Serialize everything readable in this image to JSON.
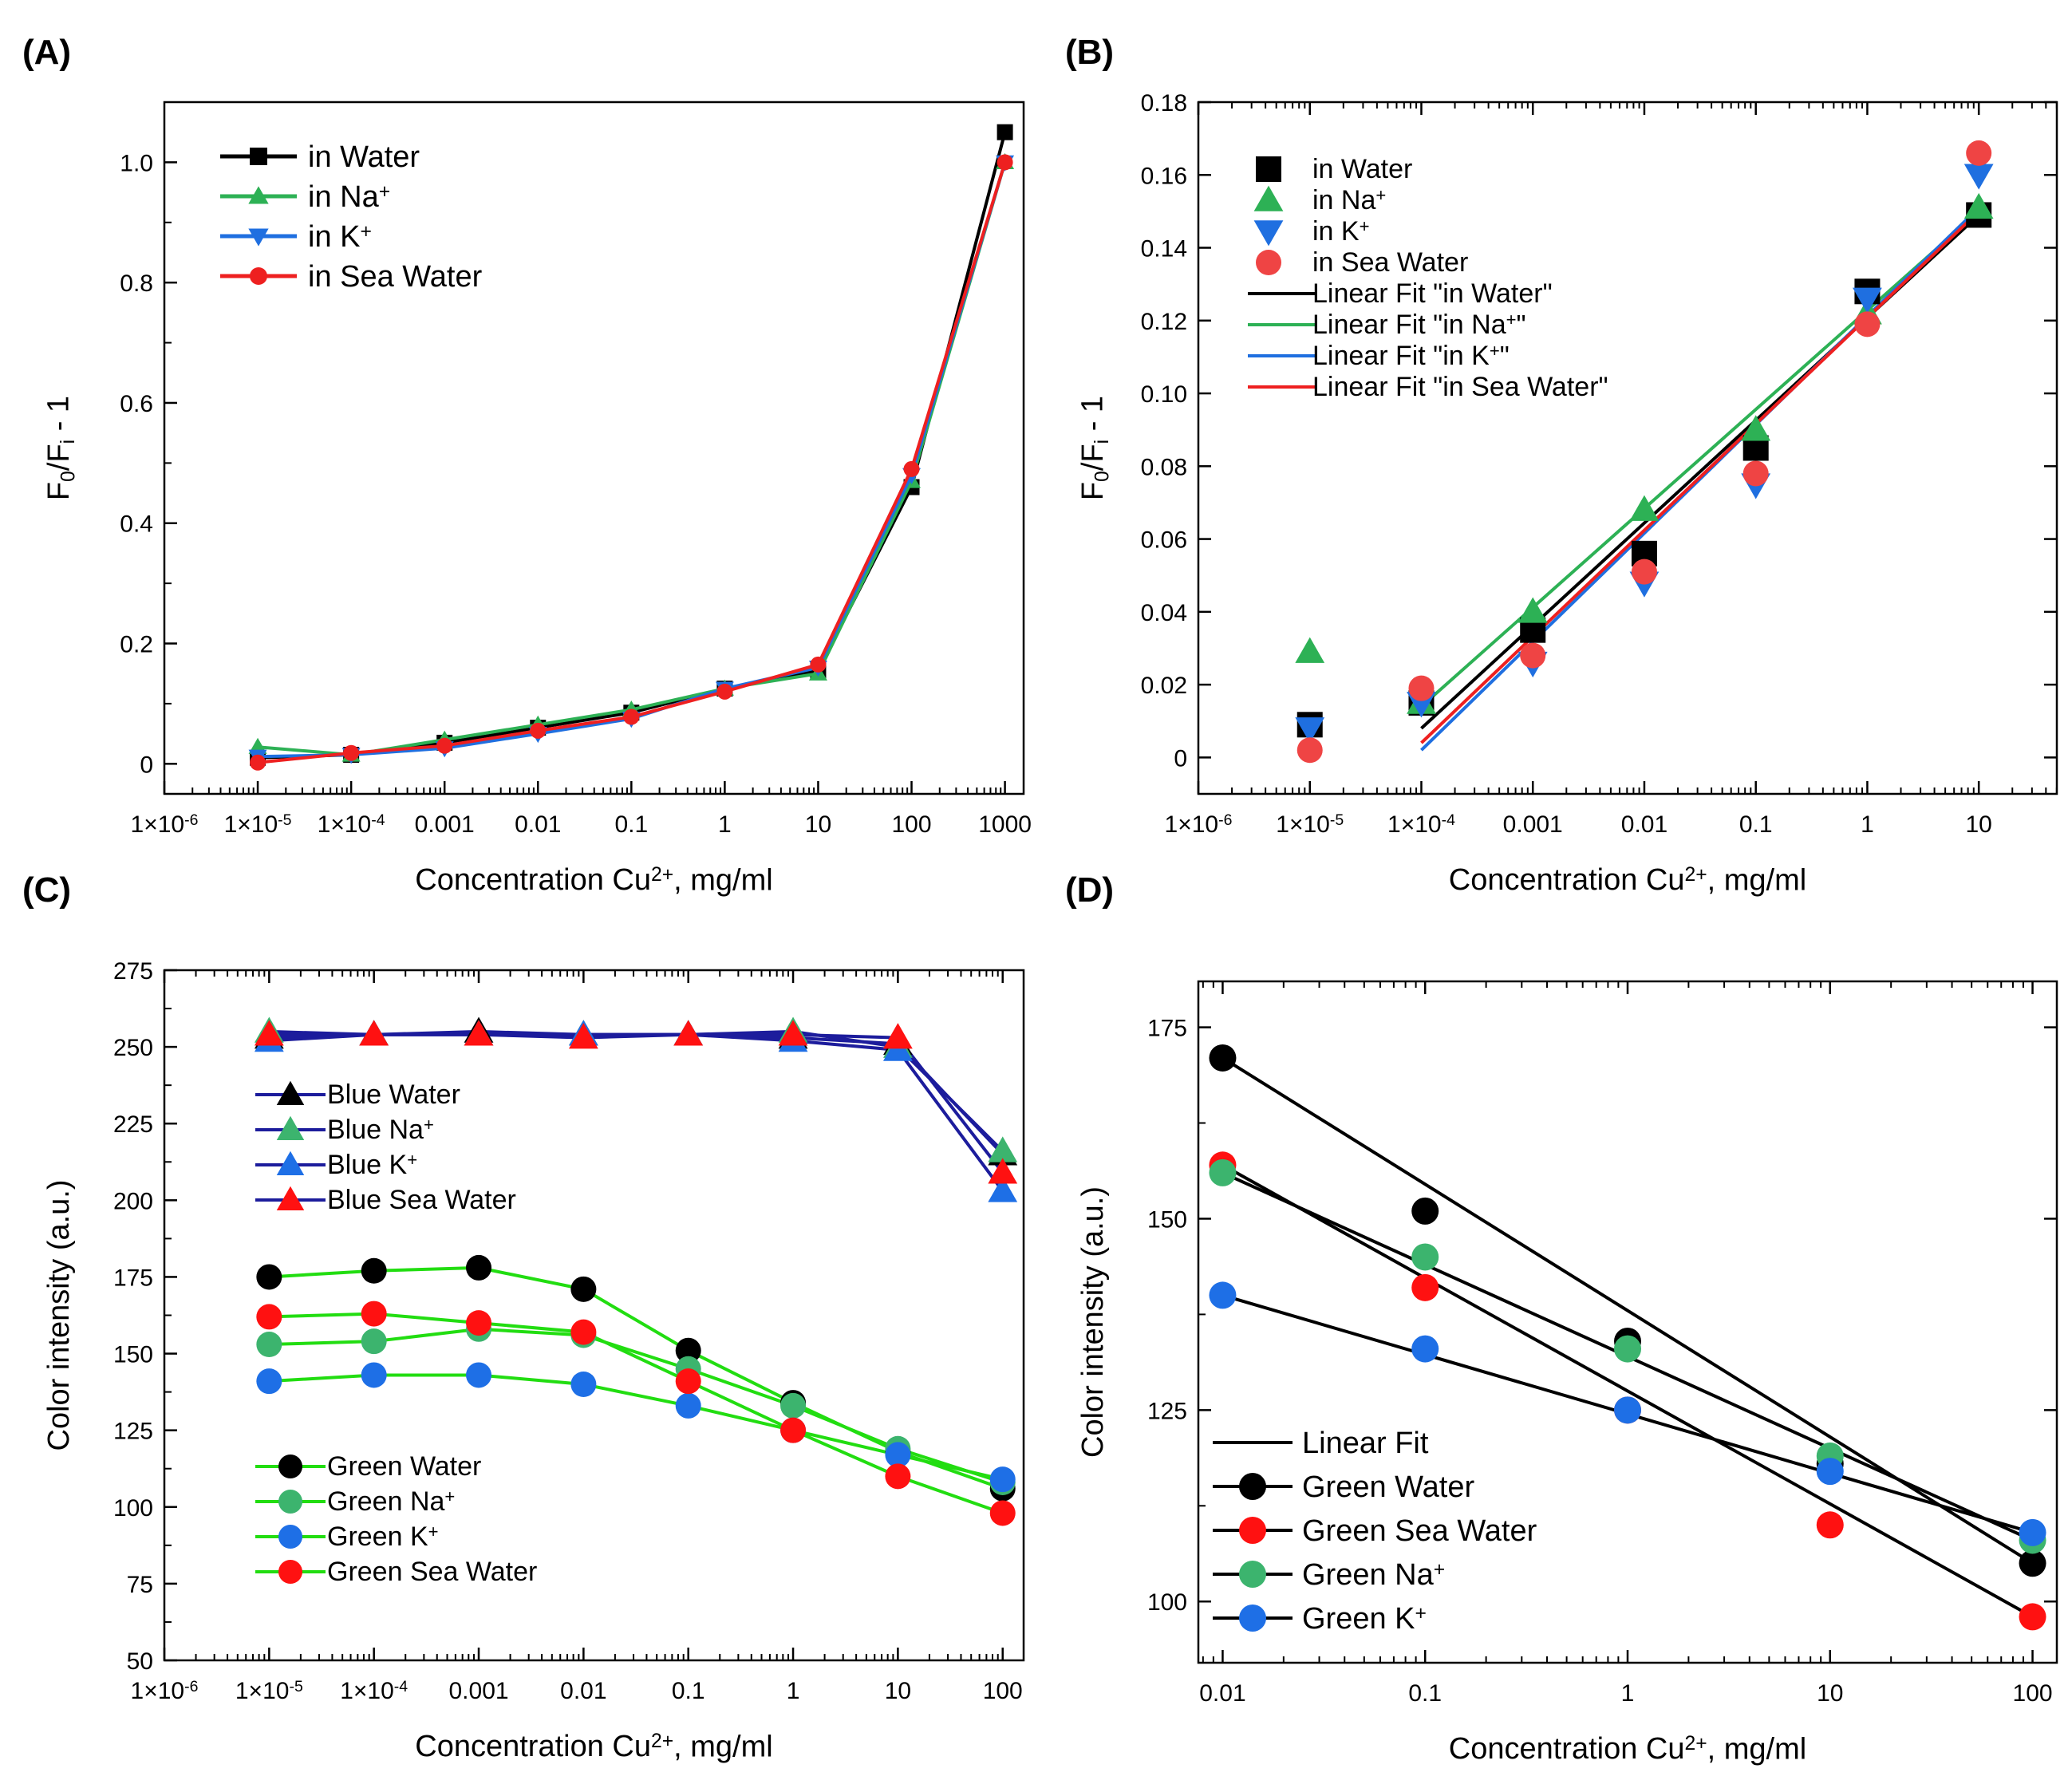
{
  "panels": {
    "A": {
      "label": "(A)"
    },
    "B": {
      "label": "(B)"
    },
    "C": {
      "label": "(C)"
    },
    "D": {
      "label": "(D)"
    }
  },
  "tick_text": {
    "m6": "1×10",
    "m6e": "-6",
    "m5": "1×10",
    "m5e": "-5",
    "m4": "1×10",
    "m4e": "-4"
  },
  "colors": {
    "black": "#000000",
    "green": "#2db155",
    "blue": "#1f6fe0",
    "red": "#ee2020",
    "navy": "#1c1c9c",
    "lime": "#22dd11",
    "ltred": "#ef4444",
    "blue_pt": "#1e6fe6",
    "green_pt": "#3cb46e",
    "red_pt": "#ff1111"
  },
  "chart_data": [
    {
      "id": "A",
      "type": "line",
      "title": "",
      "xlabel": "Concentration Cu",
      "xlabel_sup": "2+",
      "xlabel_tail": ", mg/ml",
      "ylabel": "F",
      "ylabel_sub0": "0",
      "ylabel_mid": "/F",
      "ylabel_sub1": "i",
      "ylabel_tail": " - 1",
      "xscale": "log",
      "xlim_exp": [
        -6,
        3.2
      ],
      "ylim": [
        -0.05,
        1.1
      ],
      "x_ticks": [
        "1×10-6",
        "1×10-5",
        "1×10-4",
        "0.001",
        "0.01",
        "0.1",
        "1",
        "10",
        "100",
        "1000"
      ],
      "y_ticks": [
        "0",
        "0.2",
        "0.4",
        "0.6",
        "0.8",
        "1.0"
      ],
      "x_exp": [
        -5,
        -4,
        -3,
        -2,
        -1,
        0,
        1,
        2,
        3
      ],
      "legend": {
        "placement": "top-left",
        "entries": [
          {
            "text": "in Water"
          },
          {
            "text": "in Na",
            "sup": "+"
          },
          {
            "text": "in K",
            "sup": "+"
          },
          {
            "text": "in Sea Water"
          }
        ]
      },
      "series": [
        {
          "name": "in Water",
          "marker": "square",
          "color": "#000000",
          "values": [
            0.01,
            0.015,
            0.035,
            0.06,
            0.085,
            0.125,
            0.155,
            0.46,
            1.05
          ]
        },
        {
          "name": "in Na+",
          "marker": "triangle-up",
          "color": "#2db155",
          "values": [
            0.028,
            0.015,
            0.04,
            0.065,
            0.09,
            0.125,
            0.15,
            0.47,
            1.0
          ]
        },
        {
          "name": "in K+",
          "marker": "triangle-down",
          "color": "#1f6fe0",
          "values": [
            0.012,
            0.015,
            0.026,
            0.05,
            0.075,
            0.125,
            0.16,
            0.48,
            1.0
          ]
        },
        {
          "name": "in Sea Water",
          "marker": "circle",
          "color": "#ee2020",
          "values": [
            0.002,
            0.018,
            0.03,
            0.055,
            0.078,
            0.12,
            0.165,
            0.49,
            1.0
          ]
        }
      ]
    },
    {
      "id": "B",
      "type": "scatter",
      "xlabel": "Concentration Cu",
      "xlabel_sup": "2+",
      "xlabel_tail": ", mg/ml",
      "ylabel": "F",
      "ylabel_sub0": "0",
      "ylabel_mid": "/F",
      "ylabel_sub1": "i",
      "ylabel_tail": " - 1",
      "xscale": "log",
      "xlim_exp": [
        -6,
        1.7
      ],
      "ylim": [
        -0.01,
        0.18
      ],
      "x_ticks": [
        "1×10-6",
        "1×10-5",
        "1×10-4",
        "0.001",
        "0.01",
        "0.1",
        "1",
        "10"
      ],
      "y_ticks": [
        "0",
        "0.02",
        "0.04",
        "0.06",
        "0.08",
        "0.10",
        "0.12",
        "0.14",
        "0.16",
        "0.18"
      ],
      "x_exp": [
        -5,
        -4,
        -3,
        -2,
        -1,
        0,
        1
      ],
      "legend": {
        "placement": "top-left",
        "entries": [
          {
            "text": "in Water"
          },
          {
            "text": "in Na",
            "sup": "+"
          },
          {
            "text": "in K",
            "sup": "+"
          },
          {
            "text": "in Sea Water"
          },
          {
            "text": "Linear Fit \"in Water\""
          },
          {
            "text": "Linear Fit \"in Na",
            "sup": "+",
            "tail": "\""
          },
          {
            "text": "Linear Fit \"in K",
            "sup": "+",
            "tail": "\""
          },
          {
            "text": "Linear Fit \"in Sea Water\""
          }
        ]
      },
      "series": [
        {
          "name": "in Water",
          "marker": "square",
          "color": "#000000",
          "values": [
            0.009,
            0.015,
            0.035,
            0.056,
            0.085,
            0.128,
            0.149
          ]
        },
        {
          "name": "in Na+",
          "marker": "triangle-up",
          "color": "#2db155",
          "values": [
            0.029,
            0.015,
            0.04,
            0.068,
            0.09,
            0.122,
            0.151
          ]
        },
        {
          "name": "in K+",
          "marker": "triangle-down",
          "color": "#1f6fe0",
          "values": [
            0.008,
            0.015,
            0.026,
            0.048,
            0.075,
            0.126,
            0.16
          ]
        },
        {
          "name": "in Sea Water",
          "marker": "circle",
          "color": "#ef4444",
          "values": [
            0.002,
            0.019,
            0.028,
            0.051,
            0.078,
            0.119,
            0.166
          ]
        }
      ],
      "fits": [
        {
          "name": "Linear Fit \"in Water\"",
          "color": "#000000",
          "x_exp": [
            -4,
            1
          ],
          "y": [
            0.008,
            0.149
          ]
        },
        {
          "name": "Linear Fit \"in Na+\"",
          "color": "#2db155",
          "x_exp": [
            -4,
            1
          ],
          "y": [
            0.014,
            0.15
          ]
        },
        {
          "name": "Linear Fit \"in K+\"",
          "color": "#1f6fe0",
          "x_exp": [
            -4,
            1
          ],
          "y": [
            0.002,
            0.151
          ]
        },
        {
          "name": "Linear Fit \"in Sea Water\"",
          "color": "#ee2020",
          "x_exp": [
            -4,
            1
          ],
          "y": [
            0.004,
            0.15
          ]
        }
      ]
    },
    {
      "id": "C",
      "type": "line",
      "xlabel": "Concentration Cu",
      "xlabel_sup": "2+",
      "xlabel_tail": ", mg/ml",
      "ylabel": "Color intensity (a.u.)",
      "xscale": "log",
      "xlim_exp": [
        -6,
        2.2
      ],
      "ylim": [
        50,
        275
      ],
      "x_ticks": [
        "1×10-6",
        "1×10-5",
        "1×10-4",
        "0.001",
        "0.01",
        "0.1",
        "1",
        "10",
        "100"
      ],
      "y_ticks": [
        "50",
        "75",
        "100",
        "125",
        "150",
        "175",
        "200",
        "225",
        "250",
        "275"
      ],
      "x_exp": [
        -5,
        -4,
        -3,
        -2,
        -1,
        0,
        1,
        2
      ],
      "legend_blue": {
        "placement": "middle-left",
        "entries": [
          {
            "text": "Blue Water"
          },
          {
            "text": "Blue Na",
            "sup": "+"
          },
          {
            "text": "Blue K",
            "sup": "+"
          },
          {
            "text": "Blue Sea Water"
          }
        ]
      },
      "legend_green": {
        "placement": "bottom-left",
        "entries": [
          {
            "text": "Green Water"
          },
          {
            "text": "Green Na",
            "sup": "+"
          },
          {
            "text": "Green K",
            "sup": "+"
          },
          {
            "text": "Green Sea Water"
          }
        ]
      },
      "series": [
        {
          "name": "Blue Water",
          "group": "blue",
          "marker": "triangle",
          "color": "#000000",
          "values": [
            253,
            254,
            255,
            254,
            254,
            253,
            251,
            215
          ]
        },
        {
          "name": "Blue Na+",
          "group": "blue",
          "marker": "triangle",
          "color": "#3cb46e",
          "values": [
            255,
            254,
            254,
            254,
            254,
            255,
            250,
            216
          ]
        },
        {
          "name": "Blue K+",
          "group": "blue",
          "marker": "triangle",
          "color": "#1e6fe6",
          "values": [
            252,
            254,
            254,
            254,
            254,
            252,
            249,
            203
          ]
        },
        {
          "name": "Blue Sea Water",
          "group": "blue",
          "marker": "triangle",
          "color": "#ff1111",
          "values": [
            254,
            254,
            254,
            253,
            254,
            254,
            253,
            209
          ]
        },
        {
          "name": "Green Water",
          "group": "green",
          "marker": "circle",
          "color": "#000000",
          "values": [
            175,
            177,
            178,
            171,
            151,
            134,
            118,
            106
          ]
        },
        {
          "name": "Green Na+",
          "group": "green",
          "marker": "circle",
          "color": "#3cb46e",
          "values": [
            153,
            154,
            158,
            156,
            145,
            133,
            119,
            108
          ]
        },
        {
          "name": "Green K+",
          "group": "green",
          "marker": "circle",
          "color": "#1e6fe6",
          "values": [
            141,
            143,
            143,
            140,
            133,
            125,
            117,
            109
          ]
        },
        {
          "name": "Green Sea Water",
          "group": "green",
          "marker": "circle",
          "color": "#ff1111",
          "values": [
            162,
            163,
            160,
            157,
            141,
            125,
            110,
            98
          ]
        }
      ]
    },
    {
      "id": "D",
      "type": "scatter",
      "xlabel": "Concentration Cu",
      "xlabel_sup": "2+",
      "xlabel_tail": ", mg/ml",
      "ylabel": "Color intensity (a.u.)",
      "xscale": "log",
      "xlim_exp": [
        -2.12,
        2.12
      ],
      "ylim": [
        92,
        181
      ],
      "x_ticks": [
        "0.01",
        "0.1",
        "1",
        "10",
        "100"
      ],
      "y_ticks": [
        "100",
        "125",
        "150",
        "175"
      ],
      "x_exp": [
        -2,
        -1,
        0,
        1,
        2
      ],
      "legend": {
        "placement": "bottom-left",
        "entries": [
          {
            "text": "Linear Fit",
            "kind": "line"
          },
          {
            "text": "Green Water",
            "color": "#000000"
          },
          {
            "text": "Green Sea Water",
            "color": "#ff1111"
          },
          {
            "text": "Green Na",
            "sup": "+",
            "color": "#3cb46e"
          },
          {
            "text": "Green K",
            "sup": "+",
            "color": "#1e6fe6"
          }
        ]
      },
      "series": [
        {
          "name": "Green Water",
          "color": "#000000",
          "values": [
            171,
            151,
            134,
            118,
            105
          ]
        },
        {
          "name": "Green Sea Water",
          "color": "#ff1111",
          "values": [
            157,
            141,
            125,
            110,
            98
          ]
        },
        {
          "name": "Green Na+",
          "color": "#3cb46e",
          "values": [
            156,
            145,
            133,
            119,
            108
          ]
        },
        {
          "name": "Green K+",
          "color": "#1e6fe6",
          "values": [
            140,
            133,
            125,
            117,
            109
          ]
        }
      ],
      "fits": [
        {
          "name": "Linear Fit Green Water",
          "x_exp": [
            -2,
            2
          ],
          "y": [
            171,
            105
          ]
        },
        {
          "name": "Linear Fit Green Sea Water",
          "x_exp": [
            -2,
            2
          ],
          "y": [
            157,
            98
          ]
        },
        {
          "name": "Linear Fit Green Na+",
          "x_exp": [
            -2,
            2
          ],
          "y": [
            156,
            108
          ]
        },
        {
          "name": "Linear Fit Green K+",
          "x_exp": [
            -2,
            2
          ],
          "y": [
            140,
            109
          ]
        }
      ]
    }
  ]
}
